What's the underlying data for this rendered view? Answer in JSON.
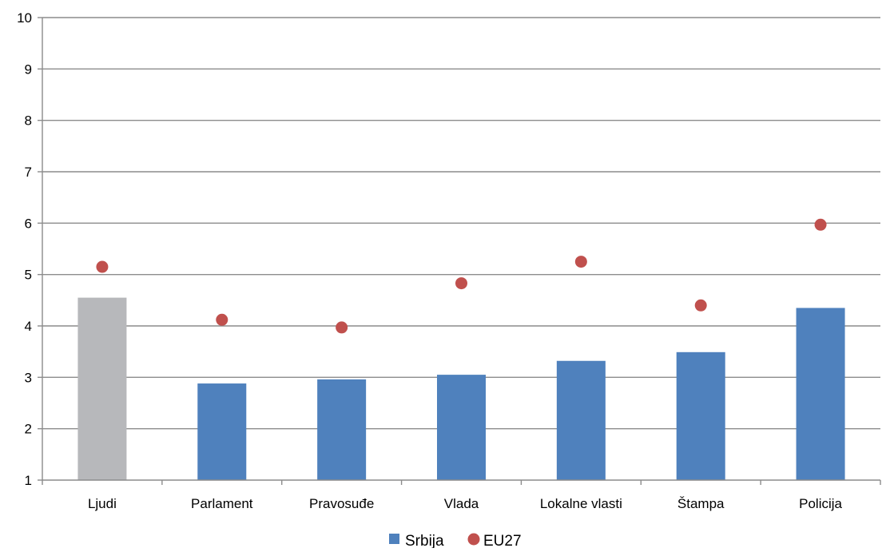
{
  "chart_data": {
    "type": "bar",
    "categories": [
      "Ljudi",
      "Parlament",
      "Pravosuđe",
      "Vlada",
      "Lokalne vlasti",
      "Štampa",
      "Policija"
    ],
    "series": [
      {
        "name": "Srbija",
        "kind": "bar",
        "values": [
          4.55,
          2.88,
          2.96,
          3.05,
          3.32,
          3.49,
          4.35
        ],
        "colors": [
          "#b7b8bb",
          "#4f81bd",
          "#4f81bd",
          "#4f81bd",
          "#4f81bd",
          "#4f81bd",
          "#4f81bd"
        ]
      },
      {
        "name": "EU27",
        "kind": "scatter",
        "values": [
          5.15,
          4.12,
          3.97,
          4.83,
          5.25,
          4.4,
          5.97
        ],
        "color": "#c0504d"
      }
    ],
    "yticks": [
      "1",
      "2",
      "3",
      "4",
      "5",
      "6",
      "7",
      "8",
      "9",
      "10"
    ],
    "ylim": [
      1,
      10
    ],
    "grid": true,
    "legend_position": "bottom-center"
  }
}
